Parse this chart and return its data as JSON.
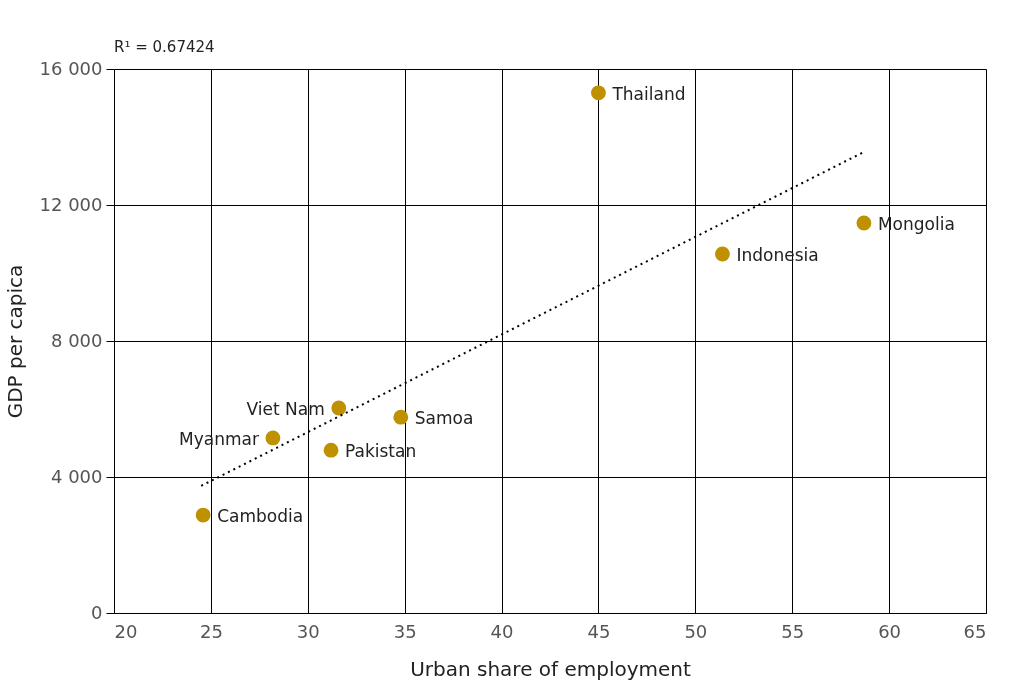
{
  "chart_data": {
    "type": "scatter",
    "xlabel": "Urban share of employment",
    "ylabel": "GDP per capica",
    "xlim": [
      20,
      65
    ],
    "xticks": [
      20,
      25,
      30,
      35,
      40,
      45,
      50,
      55,
      60,
      65
    ],
    "ylim": [
      0,
      16000
    ],
    "yticks": [
      {
        "value": 0,
        "label": "0"
      },
      {
        "value": 4000,
        "label": "4 000"
      },
      {
        "value": 8000,
        "label": "8 000"
      },
      {
        "value": 12000,
        "label": "12 000"
      },
      {
        "value": 16000,
        "label": "16 000"
      }
    ],
    "grid": true,
    "legend": false,
    "marker": "circle",
    "series": [
      {
        "type": "scatter",
        "color": "#bf9000",
        "x": [
          45.0,
          58.7,
          51.4,
          34.8,
          31.6,
          31.2,
          28.2,
          24.6
        ],
        "values": [
          15300,
          11470,
          10560,
          5760,
          6030,
          4790,
          5150,
          2880
        ]
      },
      {
        "type": "line",
        "color": "#000000",
        "line_style": "dotted",
        "marker": "none",
        "x": [
          24.5,
          58.7
        ],
        "values": [
          3740,
          13560
        ]
      }
    ],
    "annotations": [
      "R¹ = 0.67424",
      {
        "text": "Thailand",
        "x": 45.0,
        "y": 15300
      },
      {
        "text": "Mongolia",
        "x": 58.7,
        "y": 11470
      },
      {
        "text": "Indonesia",
        "x": 51.4,
        "y": 10560
      },
      {
        "text": "Samoa",
        "x": 34.8,
        "y": 5760
      },
      {
        "text": "Viet Nam",
        "x": 31.6,
        "y": 6030
      },
      {
        "text": "Pakistan",
        "x": 31.2,
        "y": 4790
      },
      {
        "text": "Myanmar",
        "x": 28.2,
        "y": 5150
      },
      {
        "text": "Cambodia",
        "x": 24.6,
        "y": 2880
      }
    ]
  }
}
